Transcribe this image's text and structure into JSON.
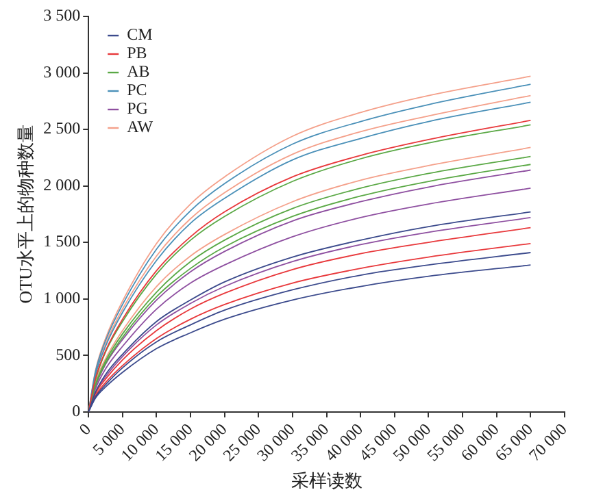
{
  "chart_data": {
    "type": "line",
    "xlabel": "采样读数",
    "ylabel": "OTU水平上的物种数量",
    "x": [
      0,
      1000,
      2500,
      5000,
      10000,
      15000,
      20000,
      30000,
      40000,
      50000,
      65000
    ],
    "xlim": [
      0,
      70000
    ],
    "xticks": [
      0,
      {
        "value": 5000,
        "label": "5 000"
      },
      {
        "value": 10000,
        "label": "10 000"
      },
      {
        "value": 15000,
        "label": "15 000"
      },
      {
        "value": 20000,
        "label": "20 000"
      },
      {
        "value": 25000,
        "label": "25 000"
      },
      {
        "value": 30000,
        "label": "30 000"
      },
      {
        "value": 35000,
        "label": "35 000"
      },
      {
        "value": 40000,
        "label": "40 000"
      },
      {
        "value": 45000,
        "label": "45 000"
      },
      {
        "value": 50000,
        "label": "50 000"
      },
      {
        "value": 55000,
        "label": "55 000"
      },
      {
        "value": 60000,
        "label": "60 000"
      },
      {
        "value": 65000,
        "label": "65 000"
      },
      {
        "value": 70000,
        "label": "70 000"
      }
    ],
    "ylim": [
      0,
      3500
    ],
    "yticks": [
      0,
      500,
      {
        "value": 1000,
        "label": "1 000"
      },
      {
        "value": 1500,
        "label": "1 500"
      },
      {
        "value": 2000,
        "label": "2 000"
      },
      {
        "value": 2500,
        "label": "2 500"
      },
      {
        "value": 3000,
        "label": "3 000"
      },
      {
        "value": 3500,
        "label": "3 500"
      }
    ],
    "legend": "top left",
    "marker": "none",
    "line_style": "solid",
    "series": [
      {
        "name": "CM",
        "color": "#3b4a8c",
        "values": [
          0,
          170,
          330,
          510,
          800,
          990,
          1150,
          1370,
          1520,
          1640,
          1770
        ]
      },
      {
        "color": "#3b4a8c",
        "values": [
          0,
          130,
          240,
          390,
          620,
          770,
          900,
          1080,
          1210,
          1300,
          1410
        ]
      },
      {
        "color": "#3b4a8c",
        "values": [
          0,
          120,
          220,
          350,
          560,
          700,
          820,
          990,
          1110,
          1200,
          1300
        ]
      },
      {
        "name": "PB",
        "color": "#e8383b",
        "values": [
          0,
          290,
          540,
          820,
          1250,
          1550,
          1770,
          2080,
          2270,
          2410,
          2580
        ]
      },
      {
        "color": "#e8383b",
        "values": [
          0,
          160,
          290,
          460,
          720,
          910,
          1050,
          1260,
          1400,
          1500,
          1630
        ]
      },
      {
        "color": "#e8383b",
        "values": [
          0,
          140,
          260,
          410,
          650,
          820,
          950,
          1140,
          1270,
          1370,
          1490
        ]
      },
      {
        "name": "AB",
        "color": "#5aa845",
        "values": [
          0,
          280,
          530,
          800,
          1220,
          1520,
          1730,
          2040,
          2240,
          2380,
          2540
        ]
      },
      {
        "color": "#5aa845",
        "values": [
          0,
          240,
          450,
          690,
          1060,
          1330,
          1520,
          1800,
          1980,
          2110,
          2260
        ]
      },
      {
        "color": "#5aa845",
        "values": [
          0,
          230,
          430,
          660,
          1020,
          1270,
          1460,
          1730,
          1910,
          2040,
          2190
        ]
      },
      {
        "name": "PC",
        "color": "#4a90b8",
        "values": [
          0,
          350,
          630,
          950,
          1440,
          1780,
          2020,
          2370,
          2570,
          2720,
          2900
        ]
      },
      {
        "color": "#4a90b8",
        "values": [
          0,
          320,
          580,
          880,
          1340,
          1670,
          1890,
          2230,
          2420,
          2570,
          2740
        ]
      },
      {
        "name": "PG",
        "color": "#8e4fa0",
        "values": [
          0,
          220,
          420,
          640,
          990,
          1240,
          1420,
          1690,
          1860,
          1990,
          2140
        ]
      },
      {
        "color": "#8e4fa0",
        "values": [
          0,
          200,
          380,
          580,
          910,
          1140,
          1300,
          1550,
          1720,
          1840,
          1980
        ]
      },
      {
        "color": "#8e4fa0",
        "values": [
          0,
          170,
          310,
          490,
          770,
          960,
          1110,
          1330,
          1480,
          1590,
          1720
        ]
      },
      {
        "name": "AW",
        "color": "#f4a08a",
        "values": [
          0,
          360,
          650,
          980,
          1490,
          1840,
          2080,
          2440,
          2650,
          2800,
          2970
        ]
      },
      {
        "color": "#f4a08a",
        "values": [
          0,
          330,
          600,
          910,
          1380,
          1710,
          1940,
          2280,
          2480,
          2620,
          2800
        ]
      },
      {
        "color": "#f4a08a",
        "values": [
          0,
          260,
          470,
          720,
          1110,
          1380,
          1570,
          1860,
          2050,
          2180,
          2340
        ]
      }
    ]
  }
}
